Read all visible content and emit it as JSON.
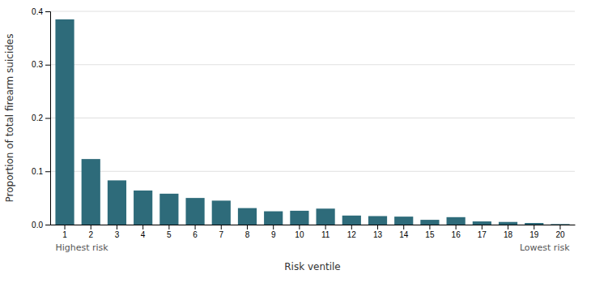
{
  "chart_data": {
    "type": "bar",
    "categories": [
      1,
      2,
      3,
      4,
      5,
      6,
      7,
      8,
      9,
      10,
      11,
      12,
      13,
      14,
      15,
      16,
      17,
      18,
      19,
      20
    ],
    "values": [
      0.385,
      0.123,
      0.083,
      0.064,
      0.058,
      0.05,
      0.045,
      0.031,
      0.025,
      0.026,
      0.03,
      0.017,
      0.016,
      0.015,
      0.009,
      0.014,
      0.006,
      0.005,
      0.003,
      0.001
    ],
    "color": "#2e6b7a",
    "ylabel": "Proportion of total firearm suicides",
    "xlabel": "Risk ventile",
    "annotations": [
      "Highest risk",
      "Lowest risk"
    ],
    "ylim": [
      0,
      0.4
    ],
    "yticks": [
      {
        "value": 0,
        "label": "0.0"
      },
      0.1,
      0.2,
      0.3,
      0.4
    ],
    "grid": true
  }
}
